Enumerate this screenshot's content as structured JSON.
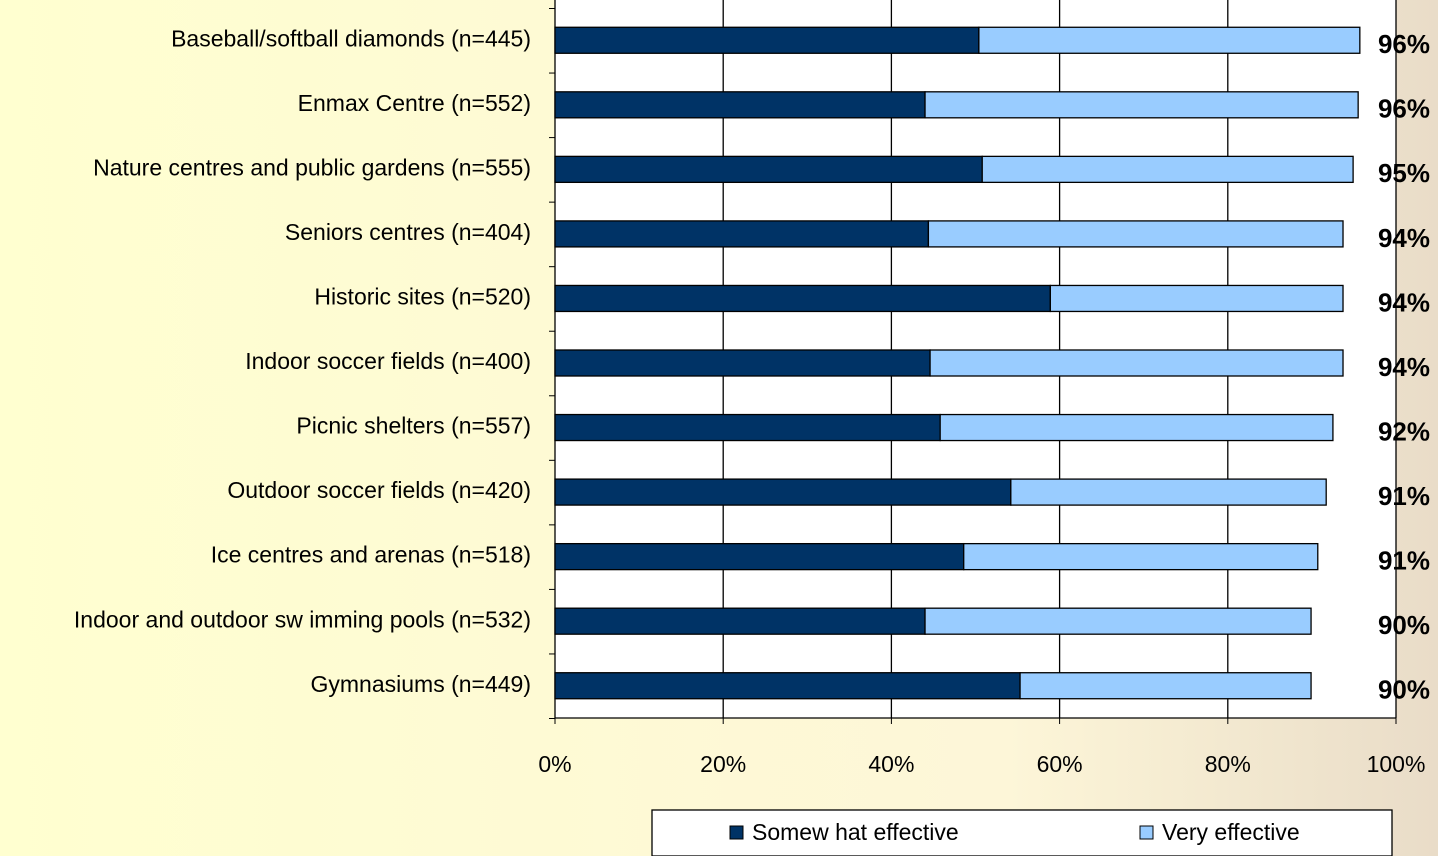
{
  "chart_data": {
    "type": "stacked-bar-horizontal",
    "categories": [
      "Baseball/softball diamonds (n=445)",
      "Enmax Centre (n=552)",
      "Nature centres and public gardens (n=555)",
      "Seniors centres (n=404)",
      "Historic sites (n=520)",
      "Indoor soccer fields (n=400)",
      "Picnic shelters (n=557)",
      "Outdoor soccer fields (n=420)",
      "Ice centres and arenas (n=518)",
      "Indoor and outdoor sw imming pools (n=532)",
      "Gymnasiums (n=449)"
    ],
    "series": [
      {
        "name": "Somew hat effective",
        "color": "#003366",
        "values": [
          50.4,
          44.0,
          50.8,
          44.4,
          58.9,
          44.6,
          45.8,
          54.2,
          48.6,
          44.0,
          55.3
        ]
      },
      {
        "name": "Very effective",
        "color": "#99ccff",
        "values": [
          45.3,
          51.5,
          44.1,
          49.3,
          34.8,
          49.1,
          46.7,
          37.5,
          42.1,
          45.9,
          34.6
        ]
      }
    ],
    "totals": {
      "values": [
        96,
        96,
        95,
        94,
        94,
        94,
        92,
        91,
        91,
        90,
        90
      ],
      "value_labels": [
        "96%",
        "96%",
        "95%",
        "94%",
        "94%",
        "94%",
        "92%",
        "91%",
        "91%",
        "90%",
        "90%"
      ]
    },
    "xlim": [
      0,
      100
    ],
    "xticks": [
      {
        "value": 0,
        "label": "0%"
      },
      {
        "value": 20,
        "label": "20%"
      },
      {
        "value": 40,
        "label": "40%"
      },
      {
        "value": 60,
        "label": "60%"
      },
      {
        "value": 80,
        "label": "80%"
      },
      {
        "value": 100,
        "label": "100%"
      }
    ],
    "grid": true,
    "legend": "bottom"
  }
}
